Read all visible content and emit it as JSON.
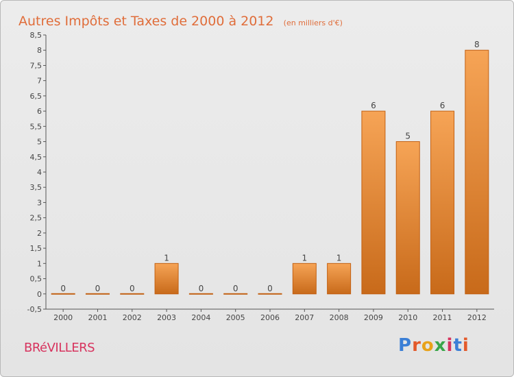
{
  "title": "Autres Impôts et Taxes de 2000 à 2012",
  "title_unit": "(en milliers d'€)",
  "commune": "BRéVILLERS",
  "logo": {
    "text": "Proxiti",
    "letter_colors": [
      "#3b7fd6",
      "#e35a2b",
      "#e8a21a",
      "#3aa64a",
      "#d6335e",
      "#3b7fd6",
      "#e35a2b"
    ]
  },
  "colors": {
    "title": "#e06d3a",
    "commune": "#d7335e",
    "bar_top": "#f6a456",
    "bar_bottom": "#c86a1a",
    "bar_edge": "#c26012"
  },
  "chart_data": {
    "type": "bar",
    "categories": [
      "2000",
      "2001",
      "2002",
      "2003",
      "2004",
      "2005",
      "2006",
      "2007",
      "2008",
      "2009",
      "2010",
      "2011",
      "2012"
    ],
    "values": [
      0,
      0,
      0,
      1,
      0,
      0,
      0,
      1,
      1,
      6,
      5,
      6,
      8
    ],
    "data_labels": [
      "0",
      "0",
      "0",
      "1",
      "0",
      "0",
      "0",
      "1",
      "1",
      "6",
      "5",
      "6",
      "8"
    ],
    "ylim": [
      -0.5,
      8.5
    ],
    "yticks": [
      "-0,5",
      "0",
      "0,5",
      "1",
      "1,5",
      "2",
      "2,5",
      "3",
      "3,5",
      "4",
      "4,5",
      "5",
      "5,5",
      "6",
      "6,5",
      "7",
      "7,5",
      "8",
      "8,5"
    ],
    "ytick_values": [
      -0.5,
      0,
      0.5,
      1,
      1.5,
      2,
      2.5,
      3,
      3.5,
      4,
      4.5,
      5,
      5.5,
      6,
      6.5,
      7,
      7.5,
      8,
      8.5
    ],
    "grid": false,
    "title": "Autres Impôts et Taxes de 2000 à 2012",
    "xlabel": "",
    "ylabel": ""
  }
}
